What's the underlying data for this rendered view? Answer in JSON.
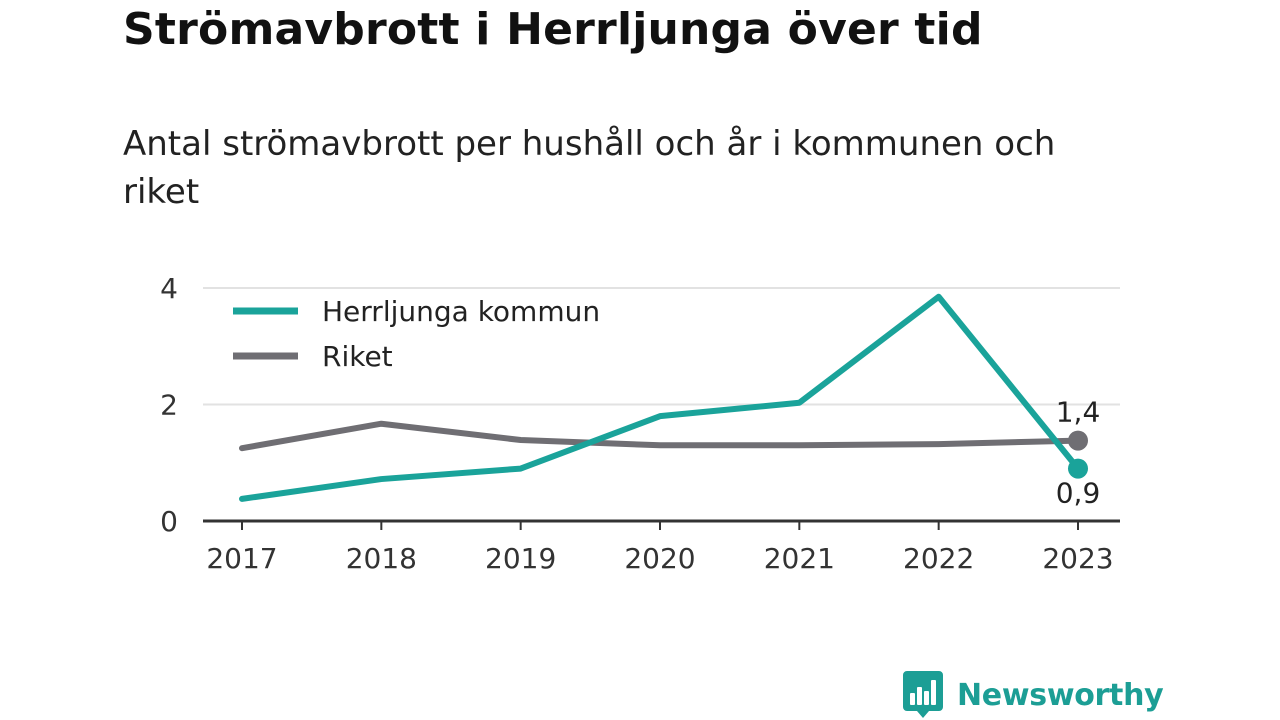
{
  "title": "Strömavbrott i Herrljunga över tid",
  "subtitle": "Antal strömavbrott per hushåll och år i kommunen och riket",
  "brand": {
    "name": "Newsworthy",
    "color": "#1c9e95"
  },
  "chart_data": {
    "type": "line",
    "categories": [
      "2017",
      "2018",
      "2019",
      "2020",
      "2021",
      "2022",
      "2023"
    ],
    "ylim": [
      0,
      4
    ],
    "yticks": [
      "0",
      "2",
      "4"
    ],
    "grid": true,
    "legend": "top-left",
    "series": [
      {
        "name": "Herrljunga kommun",
        "color": "#1aa39a",
        "values": [
          0.38,
          0.72,
          0.9,
          1.8,
          2.03,
          3.85,
          0.9
        ],
        "end_label": "0,9"
      },
      {
        "name": "Riket",
        "color": "#6f6e73",
        "values": [
          1.25,
          1.67,
          1.39,
          1.3,
          1.3,
          1.32,
          1.38
        ],
        "end_label": "1,4"
      }
    ]
  }
}
